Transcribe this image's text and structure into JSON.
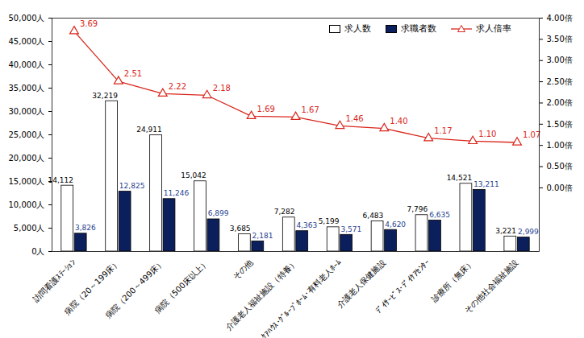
{
  "chart_data": {
    "type": "bar",
    "categories": [
      "訪問看護ｽﾃｰｼｮﾝ",
      "病院（20～199床）",
      "病院（200～499床）",
      "病院（500床以上）",
      "その他",
      "介護老人福祉施設（特養）",
      "ｹｱﾊｳｽ･ｸﾞﾙｰﾌﾟﾎｰﾑ･有料老人ﾎｰﾑ",
      "介護老人保健施設",
      "ﾃﾞｲｻｰﾋﾞｽ･ﾃﾞｲｹｱｾﾝﾀｰ",
      "診療所（無床）",
      "その他社会福祉施設"
    ],
    "series": [
      {
        "name": "求人数",
        "type": "bar",
        "color": "#ffffff",
        "values": [
          14112,
          32219,
          24911,
          15042,
          3685,
          7282,
          5199,
          6483,
          7796,
          14521,
          3221
        ],
        "value_labels": [
          "14,112",
          "32,219",
          "24,911",
          "15,042",
          "3,685",
          "7,282",
          "5,199",
          "6,483",
          "7,796",
          "14,521",
          "3,221"
        ]
      },
      {
        "name": "求職者数",
        "type": "bar",
        "color": "#0b1f5c",
        "values": [
          3826,
          12825,
          11246,
          6899,
          2181,
          4363,
          3571,
          4620,
          6635,
          13211,
          2999
        ],
        "value_labels": [
          "3,826",
          "12,825",
          "11,246",
          "6,899",
          "2,181",
          "4,363",
          "3,571",
          "4,620",
          "6,635",
          "13,211",
          "2,999"
        ]
      },
      {
        "name": "求人倍率",
        "type": "line",
        "axis": "y2",
        "color": "#d9261c",
        "marker": "triangle",
        "values": [
          3.69,
          2.51,
          2.22,
          2.18,
          1.69,
          1.67,
          1.46,
          1.4,
          1.17,
          1.1,
          1.07
        ],
        "value_labels": [
          "3.69",
          "2.51",
          "2.22",
          "2.18",
          "1.69",
          "1.67",
          "1.46",
          "1.40",
          "1.17",
          "1.10",
          "1.07"
        ]
      }
    ],
    "ylim": [
      0,
      50000
    ],
    "yticks": [
      {
        "value": 0,
        "label": "0人"
      },
      {
        "value": 5000,
        "label": "5,000人"
      },
      {
        "value": 10000,
        "label": "10,000人"
      },
      {
        "value": 15000,
        "label": "15,000人"
      },
      {
        "value": 20000,
        "label": "20,000人"
      },
      {
        "value": 25000,
        "label": "25,000人"
      },
      {
        "value": 30000,
        "label": "30,000人"
      },
      {
        "value": 35000,
        "label": "35,000人"
      },
      {
        "value": 40000,
        "label": "40,000人"
      },
      {
        "value": 45000,
        "label": "45,000人"
      },
      {
        "value": 50000,
        "label": "50,000人"
      }
    ],
    "y2lim": [
      -1.5,
      4.0
    ],
    "y2ticks": [
      {
        "value": 0,
        "label": "0.00倍"
      },
      {
        "value": 0.5,
        "label": "0.50倍"
      },
      {
        "value": 1.0,
        "label": "1.00倍"
      },
      {
        "value": 1.5,
        "label": "1.50倍"
      },
      {
        "value": 2.0,
        "label": "2.00倍"
      },
      {
        "value": 2.5,
        "label": "2.50倍"
      },
      {
        "value": 3.0,
        "label": "3.00倍"
      },
      {
        "value": 3.5,
        "label": "3.50倍"
      },
      {
        "value": 4.0,
        "label": "4.00倍"
      }
    ],
    "legend": "top-right",
    "data_labels": true,
    "grid": false
  }
}
